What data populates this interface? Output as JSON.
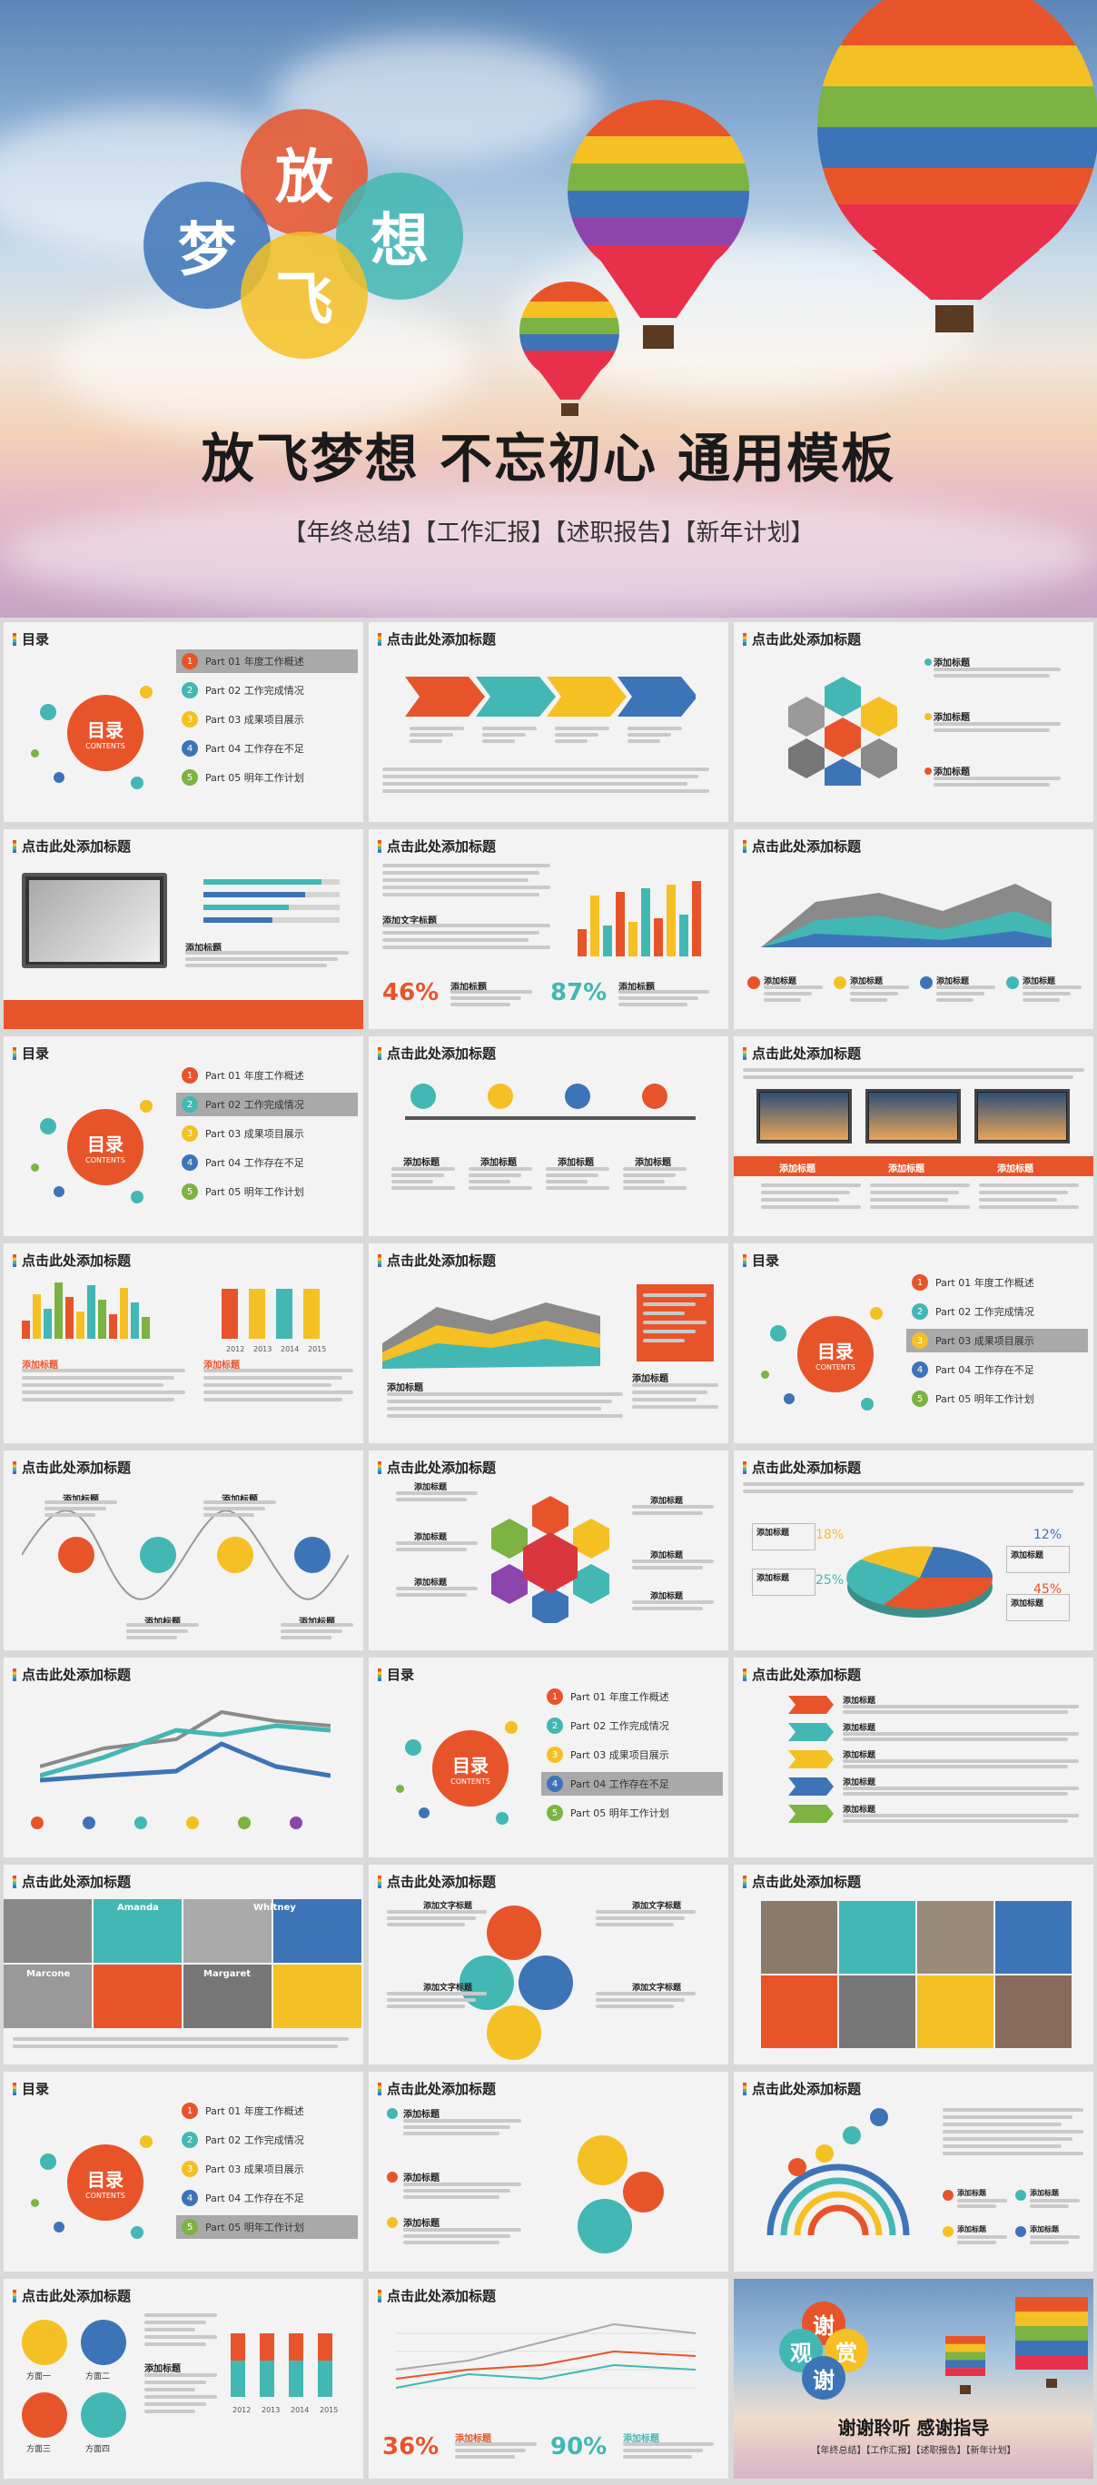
{
  "hero": {
    "title": "放飞梦想 不忘初心 通用模板",
    "subtitle": "【年终总结】【工作汇报】【述职报告】【新年计划】",
    "circle_words": [
      "放",
      "梦",
      "想",
      "飞"
    ]
  },
  "slide_title": "点击此处添加标题",
  "toc": {
    "title": "目录",
    "badge_main": "目录",
    "badge_sub": "CONTENTS",
    "items": [
      "Part 01  年度工作概述",
      "Part 02  工作完成情况",
      "Part 03  成果项目展示",
      "Part 04  工作存在不足",
      "Part 05  明年工作计划"
    ],
    "numbers": [
      "1",
      "2",
      "3",
      "4",
      "5"
    ]
  },
  "labels": {
    "add_title": "添加标题",
    "add_text": "添加文字标题",
    "pct1": "46%",
    "pct2": "87%",
    "pct3": "36%",
    "pct4": "90%",
    "pie_pct": [
      "18%",
      "12%",
      "25%",
      "45%"
    ],
    "years": [
      "2012",
      "2013",
      "2014",
      "2015"
    ],
    "names": [
      "Amanda",
      "Whitney",
      "Marcone",
      "Margaret"
    ],
    "people_blocks": [
      "方面一",
      "方面二",
      "方面三",
      "方面四"
    ]
  },
  "thanks": {
    "title": "谢谢聆听 感谢指导",
    "subtitle": "【年终总结】【工作汇报】【述职报告】【新年计划】",
    "circle_words": [
      "谢",
      "观",
      "赏",
      "谢"
    ]
  },
  "colors": {
    "orange": "#e8542a",
    "yellow": "#f5c023",
    "teal": "#43b7b3",
    "blue": "#3d74b8",
    "green": "#7cb342",
    "grey": "#a9a9a9"
  }
}
